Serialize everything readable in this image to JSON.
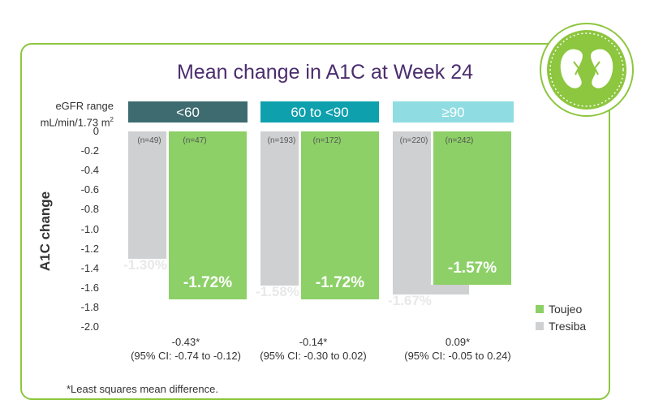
{
  "title": "Mean change in A1C at Week 24",
  "range_label": {
    "line1": "eGFR range",
    "line2": "mL/min/1.73 m",
    "sup": "2"
  },
  "ylabel": "A1C change",
  "footnote": "*Least squares mean difference.",
  "colors": {
    "toujeo": "#8cd067",
    "tresiba": "#cfd0d2",
    "header1": "#3d6b70",
    "header2": "#0ea0ad",
    "header3": "#8fdde2",
    "title": "#4b2d6e",
    "frame": "#8dc63f"
  },
  "chart_data": {
    "type": "bar",
    "title": "Mean change in A1C at Week 24",
    "ylabel": "A1C change",
    "ylim": [
      -2.0,
      0
    ],
    "yticks": [
      "0",
      "-0.2",
      "-0.4",
      "-0.6",
      "-0.8",
      "-1.0",
      "-1.2",
      "-1.4",
      "-1.6",
      "-1.8",
      "-2.0"
    ],
    "categories": [
      "<60",
      "60 to <90",
      "≥90"
    ],
    "series": [
      {
        "name": "Tresiba",
        "values": [
          -1.3,
          -1.58,
          -1.67
        ],
        "labels": [
          "-1.30%",
          "-1.58%",
          "-1.67%"
        ],
        "n": [
          "(n=49)",
          "(n=193)",
          "(n=220)"
        ]
      },
      {
        "name": "Toujeo",
        "values": [
          -1.72,
          -1.72,
          -1.57
        ],
        "labels": [
          "-1.72%",
          "-1.72%",
          "-1.57%"
        ],
        "n": [
          "(n=47)",
          "(n=172)",
          "(n=242)"
        ]
      }
    ],
    "differences": [
      {
        "value": "-0.43*",
        "ci": "(95% CI: -0.74 to -0.12)"
      },
      {
        "value": "-0.14*",
        "ci": "(95% CI: -0.30 to 0.02)"
      },
      {
        "value": "0.09*",
        "ci": "(95% CI: -0.05 to 0.24)"
      }
    ],
    "legend": [
      "Toujeo",
      "Tresiba"
    ]
  }
}
